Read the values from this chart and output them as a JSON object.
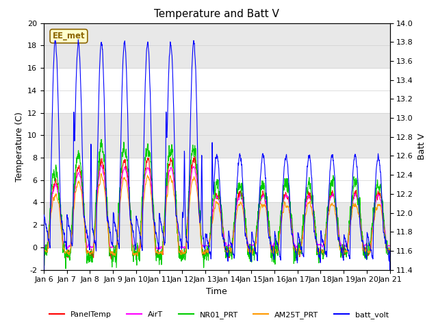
{
  "title": "Temperature and Batt V",
  "xlabel": "Time",
  "ylabel_left": "Temperature (C)",
  "ylabel_right": "Batt V",
  "ylim_left": [
    -2,
    20
  ],
  "ylim_right": [
    11.4,
    14.0
  ],
  "xtick_labels": [
    "Jan 6",
    "Jan 7",
    "Jan 8",
    "Jan 9",
    "Jan 10",
    "Jan 11",
    "Jan 12",
    "Jan 13",
    "Jan 14",
    "Jan 15",
    "Jan 16",
    "Jan 17",
    "Jan 18",
    "Jan 19",
    "Jan 20",
    "Jan 21"
  ],
  "xtick_positions": [
    0,
    1,
    2,
    3,
    4,
    5,
    6,
    7,
    8,
    9,
    10,
    11,
    12,
    13,
    14,
    15
  ],
  "station_label": "EE_met",
  "colors": {
    "PanelTemp": "#ff0000",
    "AirT": "#ff00ff",
    "NR01_PRT": "#00cc00",
    "AM25T_PRT": "#ff9900",
    "batt_volt": "#0000ff"
  },
  "gray_band_color": "#e8e8e8",
  "title_fontsize": 11,
  "axis_fontsize": 9,
  "tick_fontsize": 8,
  "yticks_left": [
    -2,
    0,
    2,
    4,
    6,
    8,
    10,
    12,
    14,
    16,
    18,
    20
  ],
  "yticks_right": [
    11.4,
    11.6,
    11.8,
    12.0,
    12.2,
    12.4,
    12.6,
    12.8,
    13.0,
    13.2,
    13.4,
    13.6,
    13.8,
    14.0
  ]
}
